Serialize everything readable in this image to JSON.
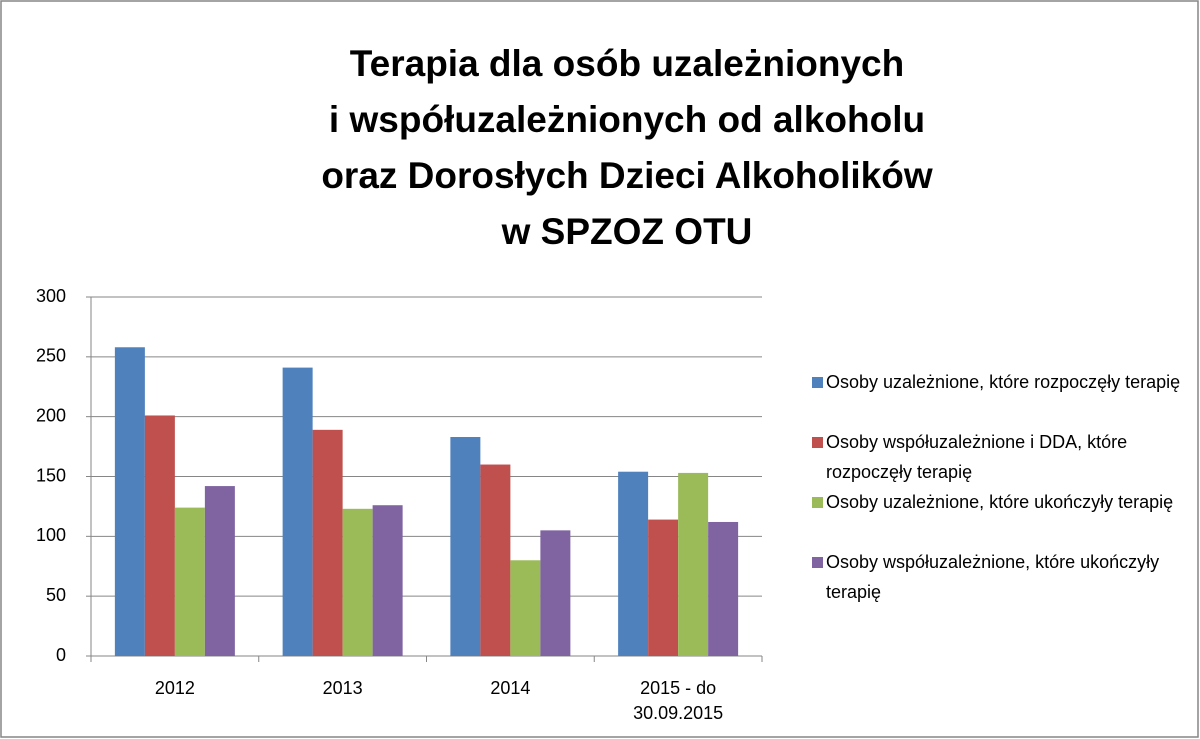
{
  "chart_data": {
    "type": "bar",
    "title": "Terapia dla osób uzależnionych\ni współuzależnionych od alkoholu\noraz Dorosłych Dzieci Alkoholików\nw SPZOZ OTU",
    "categories": [
      "2012",
      "2013",
      "2014",
      "2015 - do 30.09.2015"
    ],
    "series": [
      {
        "name": "Osoby uzależnione, które rozpoczęły terapię",
        "color": "#4f81bd",
        "values": [
          258,
          241,
          183,
          154
        ]
      },
      {
        "name": "Osoby współuzależnione i DDA, które rozpoczęły terapię",
        "color": "#c0504d",
        "values": [
          201,
          189,
          160,
          114
        ]
      },
      {
        "name": "Osoby uzależnione, które ukończyły terapię",
        "color": "#9bbb59",
        "values": [
          124,
          123,
          80,
          153
        ]
      },
      {
        "name": "Osoby współuzależnione, które ukończyły terapię",
        "color": "#8064a2",
        "values": [
          142,
          126,
          105,
          112
        ]
      }
    ],
    "ylim": [
      0,
      300
    ],
    "yticks": [
      0,
      50,
      100,
      150,
      200,
      250,
      300
    ],
    "grid": true,
    "legend": "right"
  }
}
